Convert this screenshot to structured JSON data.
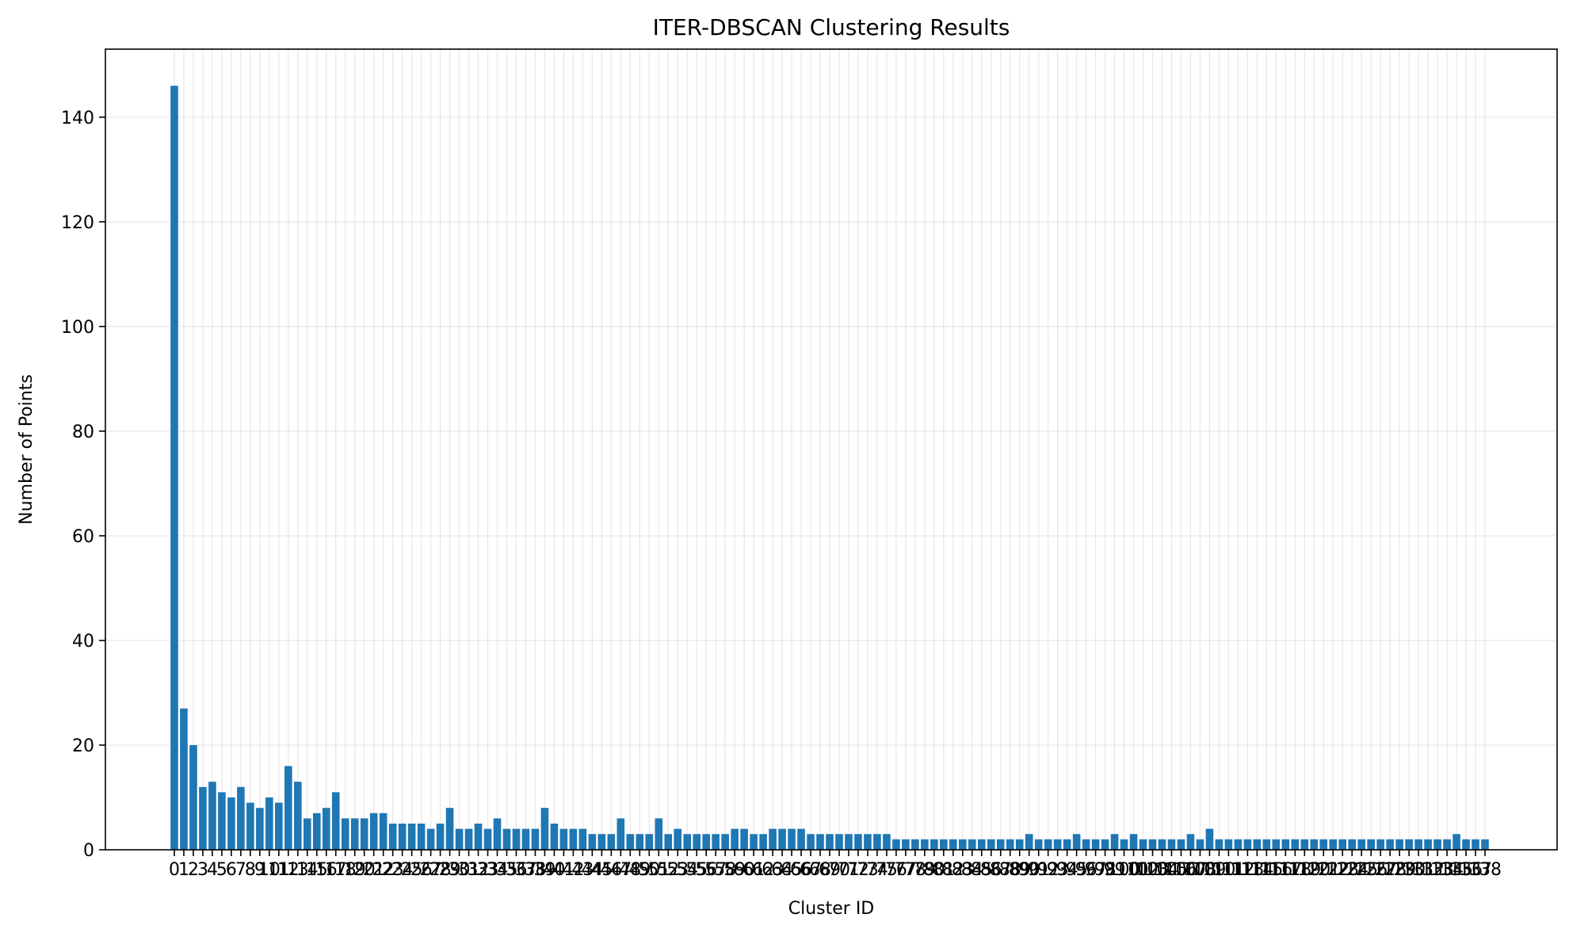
{
  "chart_data": {
    "type": "bar",
    "title": "ITER-DBSCAN Clustering Results",
    "xlabel": "Cluster ID",
    "ylabel": "Number of Points",
    "ylim": [
      0,
      153
    ],
    "yticks": [
      0,
      20,
      40,
      60,
      80,
      100,
      120,
      140
    ],
    "grid": true,
    "bar_color": "#1f77b4",
    "categories": [
      0,
      1,
      2,
      3,
      4,
      5,
      6,
      7,
      8,
      9,
      10,
      11,
      12,
      13,
      14,
      15,
      16,
      17,
      18,
      19,
      20,
      21,
      22,
      23,
      24,
      25,
      26,
      27,
      28,
      29,
      30,
      31,
      32,
      33,
      34,
      35,
      36,
      37,
      38,
      39,
      40,
      41,
      42,
      43,
      44,
      45,
      46,
      47,
      48,
      49,
      50,
      51,
      52,
      53,
      54,
      55,
      56,
      57,
      58,
      59,
      60,
      61,
      62,
      63,
      64,
      65,
      66,
      67,
      68,
      69,
      70,
      71,
      72,
      73,
      74,
      75,
      76,
      77,
      78,
      79,
      80,
      81,
      82,
      83,
      84,
      85,
      86,
      87,
      88,
      89,
      90,
      91,
      92,
      93,
      94,
      95,
      96,
      97,
      98,
      99,
      100,
      101,
      102,
      103,
      104,
      105,
      106,
      107,
      108,
      109,
      110,
      111,
      112,
      113,
      114,
      115,
      116,
      117,
      118,
      119,
      120,
      121,
      122,
      123,
      124,
      125,
      126,
      127,
      128,
      129,
      130,
      131,
      132,
      133,
      134,
      135,
      136,
      137,
      138
    ],
    "values": [
      146,
      27,
      20,
      12,
      13,
      11,
      10,
      12,
      9,
      8,
      10,
      9,
      16,
      13,
      6,
      7,
      8,
      11,
      6,
      6,
      6,
      7,
      7,
      5,
      5,
      5,
      5,
      4,
      5,
      8,
      4,
      4,
      5,
      4,
      6,
      4,
      4,
      4,
      4,
      8,
      5,
      4,
      4,
      4,
      3,
      3,
      3,
      6,
      3,
      3,
      3,
      6,
      3,
      4,
      3,
      3,
      3,
      3,
      3,
      4,
      4,
      3,
      3,
      4,
      4,
      4,
      4,
      3,
      3,
      3,
      3,
      3,
      3,
      3,
      3,
      3,
      2,
      2,
      2,
      2,
      2,
      2,
      2,
      2,
      2,
      2,
      2,
      2,
      2,
      2,
      3,
      2,
      2,
      2,
      2,
      3,
      2,
      2,
      2,
      3,
      2,
      3,
      2,
      2,
      2,
      2,
      2,
      3,
      2,
      4,
      2,
      2,
      2,
      2,
      2,
      2,
      2,
      2,
      2,
      2,
      2,
      2,
      2,
      2,
      2,
      2,
      2,
      2,
      2,
      2,
      2,
      2,
      2,
      2,
      2,
      3,
      2,
      2,
      2
    ]
  }
}
